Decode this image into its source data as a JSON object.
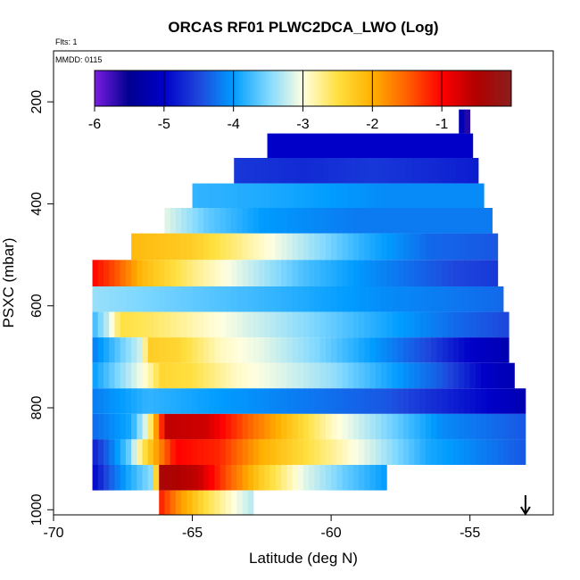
{
  "chart_data": {
    "type": "heatmap",
    "title": "ORCAS RF01 PLWC2DCA_LWO (Log)",
    "annotations": [
      "Flts: 1",
      "MMDD: 0115"
    ],
    "xlabel": "Latitude (deg N)",
    "ylabel": "PSXC (mbar)",
    "xlim": [
      -70,
      -52
    ],
    "ylim": [
      1010,
      100
    ],
    "y_reversed": true,
    "x_ticks": [
      "-70",
      "-65",
      "-60",
      "-55"
    ],
    "y_ticks": [
      "200",
      "400",
      "600",
      "800",
      "1000"
    ],
    "colorbar": {
      "range": [
        -6.0,
        0.0
      ],
      "ticks": [
        "-6",
        "-5",
        "-4",
        "-3",
        "-2",
        "-1"
      ],
      "palette": [
        "#7a1de0",
        "#000090",
        "#0000c8",
        "#1e46dc",
        "#009cff",
        "#7fd8ff",
        "#ffffe0",
        "#ffe040",
        "#ffb000",
        "#ff6000",
        "#ff0000",
        "#b00000",
        "#8c1e1e"
      ]
    },
    "bands": [
      {
        "p0": 215,
        "p1": 262,
        "segments": [
          [
            -55.4,
            -4.9
          ],
          [
            -55.0,
            -5.9
          ]
        ]
      },
      {
        "p0": 262,
        "p1": 310,
        "segments": [
          [
            -62.3,
            -5.0
          ],
          [
            -54.9,
            -5.0
          ]
        ]
      },
      {
        "p0": 310,
        "p1": 360,
        "segments": [
          [
            -63.5,
            -4.6
          ],
          [
            -61.0,
            -4.7
          ],
          [
            -58.5,
            -4.6
          ],
          [
            -56.5,
            -4.7
          ],
          [
            -54.7,
            -4.8
          ]
        ]
      },
      {
        "p0": 360,
        "p1": 408,
        "segments": [
          [
            -65.0,
            -3.8
          ],
          [
            -62.0,
            -3.9
          ],
          [
            -58.0,
            -4.1
          ],
          [
            -54.5,
            -4.1
          ]
        ]
      },
      {
        "p0": 408,
        "p1": 458,
        "segments": [
          [
            -66.0,
            -3.1
          ],
          [
            -64.5,
            -3.6
          ],
          [
            -62.5,
            -4.0
          ],
          [
            -59.0,
            -4.2
          ],
          [
            -54.2,
            -4.2
          ]
        ]
      },
      {
        "p0": 458,
        "p1": 510,
        "segments": [
          [
            -67.2,
            -2.1
          ],
          [
            -65.0,
            -2.3
          ],
          [
            -63.0,
            -2.8
          ],
          [
            -61.0,
            -3.3
          ],
          [
            -59.0,
            -3.8
          ],
          [
            -56.5,
            -4.3
          ],
          [
            -54.0,
            -4.4
          ]
        ]
      },
      {
        "p0": 510,
        "p1": 562,
        "segments": [
          [
            -68.6,
            -1.0
          ],
          [
            -67.8,
            -1.4
          ],
          [
            -66.8,
            -2.1
          ],
          [
            -65.0,
            -2.7
          ],
          [
            -63.0,
            -3.2
          ],
          [
            -61.0,
            -3.7
          ],
          [
            -58.5,
            -4.1
          ],
          [
            -55.5,
            -4.5
          ],
          [
            -54.0,
            -4.6
          ]
        ]
      },
      {
        "p0": 562,
        "p1": 612,
        "segments": [
          [
            -68.6,
            -3.4
          ],
          [
            -62.0,
            -3.8
          ],
          [
            -58.0,
            -4.1
          ],
          [
            -53.8,
            -4.3
          ]
        ]
      },
      {
        "p0": 612,
        "p1": 662,
        "segments": [
          [
            -68.6,
            -3.8
          ],
          [
            -68.0,
            -3.2
          ],
          [
            -67.6,
            -2.5
          ],
          [
            -66.5,
            -2.6
          ],
          [
            -64.0,
            -3.0
          ],
          [
            -62.0,
            -3.3
          ],
          [
            -60.0,
            -3.6
          ],
          [
            -57.5,
            -4.0
          ],
          [
            -55.5,
            -4.3
          ],
          [
            -53.6,
            -4.5
          ]
        ]
      },
      {
        "p0": 662,
        "p1": 712,
        "segments": [
          [
            -68.6,
            -4.2
          ],
          [
            -67.6,
            -3.6
          ],
          [
            -66.9,
            -3.2
          ],
          [
            -66.5,
            -2.3
          ],
          [
            -65.5,
            -2.4
          ],
          [
            -64.0,
            -2.9
          ],
          [
            -62.5,
            -3.1
          ],
          [
            -60.5,
            -3.5
          ],
          [
            -58.5,
            -4.0
          ],
          [
            -56.5,
            -4.5
          ],
          [
            -55.0,
            -5.0
          ],
          [
            -53.6,
            -5.2
          ]
        ]
      },
      {
        "p0": 712,
        "p1": 762,
        "segments": [
          [
            -68.6,
            -4.0
          ],
          [
            -67.5,
            -3.4
          ],
          [
            -66.6,
            -2.9
          ],
          [
            -66.1,
            -2.4
          ],
          [
            -65.0,
            -2.5
          ],
          [
            -63.5,
            -2.9
          ],
          [
            -62.0,
            -3.1
          ],
          [
            -60.0,
            -3.4
          ],
          [
            -58.0,
            -3.9
          ],
          [
            -56.0,
            -4.4
          ],
          [
            -54.5,
            -5.0
          ],
          [
            -53.4,
            -5.2
          ]
        ]
      },
      {
        "p0": 762,
        "p1": 812,
        "segments": [
          [
            -68.6,
            -4.2
          ],
          [
            -66.6,
            -3.8
          ],
          [
            -64.0,
            -4.0
          ],
          [
            -61.0,
            -4.2
          ],
          [
            -58.0,
            -4.4
          ],
          [
            -55.5,
            -4.8
          ],
          [
            -53.0,
            -5.2
          ]
        ]
      },
      {
        "p0": 812,
        "p1": 862,
        "segments": [
          [
            -68.6,
            -4.3
          ],
          [
            -67.2,
            -3.9
          ],
          [
            -66.6,
            -3.0
          ],
          [
            -66.2,
            -1.5
          ],
          [
            -65.9,
            -0.6
          ],
          [
            -64.5,
            -0.7
          ],
          [
            -63.0,
            -1.5
          ],
          [
            -61.5,
            -2.2
          ],
          [
            -60.0,
            -2.9
          ],
          [
            -58.0,
            -3.5
          ],
          [
            -56.0,
            -4.1
          ],
          [
            -53.0,
            -4.4
          ]
        ]
      },
      {
        "p0": 862,
        "p1": 912,
        "segments": [
          [
            -68.6,
            -4.8
          ],
          [
            -67.8,
            -4.1
          ],
          [
            -67.3,
            -3.6
          ],
          [
            -66.8,
            -2.6
          ],
          [
            -66.2,
            -1.8
          ],
          [
            -65.6,
            -1.0
          ],
          [
            -64.0,
            -1.2
          ],
          [
            -62.5,
            -2.0
          ],
          [
            -60.5,
            -2.6
          ],
          [
            -58.5,
            -3.2
          ],
          [
            -56.5,
            -3.9
          ],
          [
            -53.0,
            -4.4
          ]
        ]
      },
      {
        "p0": 912,
        "p1": 962,
        "segments": [
          [
            -68.6,
            -5.0
          ],
          [
            -68.0,
            -4.4
          ],
          [
            -67.3,
            -3.9
          ],
          [
            -66.4,
            -3.4
          ],
          [
            -66.1,
            -0.4
          ],
          [
            -64.8,
            -0.6
          ],
          [
            -63.8,
            -1.4
          ],
          [
            -62.5,
            -2.3
          ],
          [
            -61.0,
            -3.1
          ],
          [
            -59.5,
            -3.6
          ],
          [
            -58.0,
            -4.0
          ]
        ]
      },
      {
        "p0": 962,
        "p1": 1010,
        "segments": [
          [
            -66.2,
            -1.1
          ],
          [
            -65.5,
            -1.8
          ],
          [
            -64.5,
            -2.5
          ],
          [
            -63.5,
            -3.0
          ],
          [
            -62.8,
            -3.3
          ]
        ]
      }
    ],
    "missing_data_arrow_x": -53.0
  }
}
